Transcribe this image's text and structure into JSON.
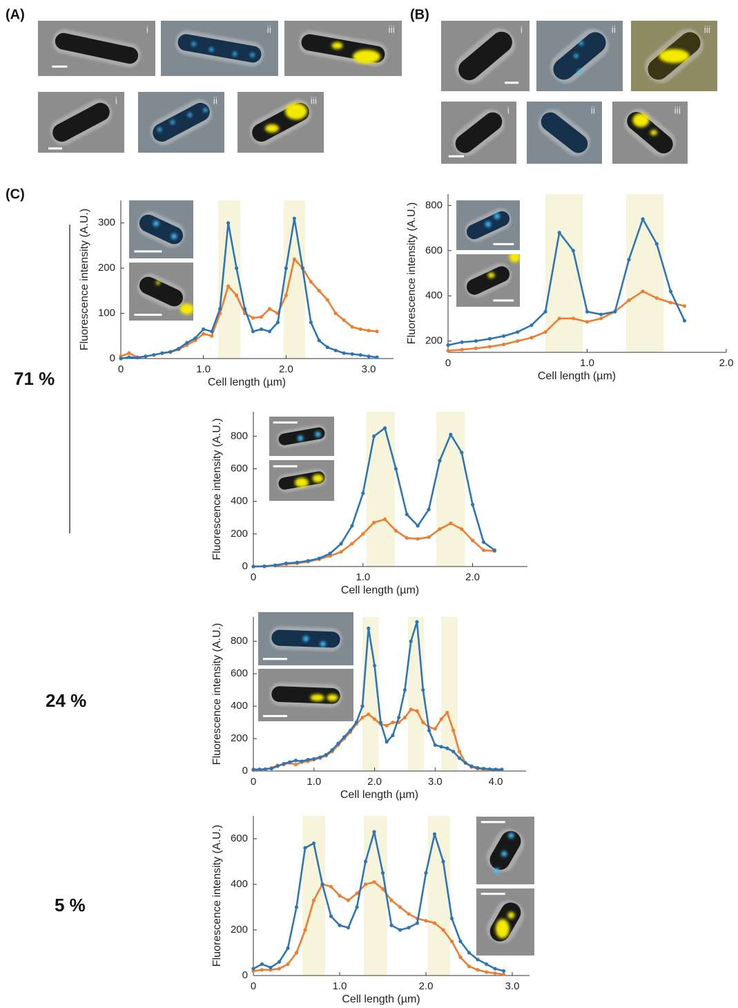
{
  "panel_labels": [
    "(A)",
    "(B)",
    "(C)"
  ],
  "image_labels": [
    "i",
    "ii",
    "iii"
  ],
  "percentages": [
    "71 %",
    "24 %",
    "5 %"
  ],
  "chart_data": [
    {
      "type": "line",
      "x_label": "Cell length (µm)",
      "y_label": "Fluorescence intensity (A.U.)",
      "x": [
        0,
        0.1,
        0.2,
        0.3,
        0.4,
        0.5,
        0.6,
        0.7,
        0.8,
        0.9,
        1.0,
        1.1,
        1.2,
        1.3,
        1.4,
        1.5,
        1.6,
        1.7,
        1.8,
        1.9,
        2.0,
        2.1,
        2.2,
        2.3,
        2.4,
        2.5,
        2.6,
        2.7,
        2.8,
        2.9,
        3.0,
        3.1
      ],
      "series": [
        {
          "color": "#ed7d31",
          "values": [
            5,
            12,
            3,
            5,
            8,
            12,
            14,
            20,
            30,
            40,
            55,
            50,
            100,
            160,
            140,
            100,
            90,
            92,
            110,
            100,
            140,
            220,
            200,
            170,
            150,
            130,
            100,
            85,
            70,
            65,
            62,
            60
          ]
        },
        {
          "color": "#2e75b6",
          "values": [
            0,
            3,
            2,
            5,
            8,
            12,
            15,
            22,
            35,
            45,
            65,
            60,
            110,
            300,
            200,
            110,
            60,
            65,
            60,
            80,
            200,
            310,
            200,
            80,
            40,
            25,
            18,
            12,
            10,
            8,
            5,
            3
          ]
        }
      ],
      "highlights": [
        [
          1.18,
          1.45
        ],
        [
          1.97,
          2.23
        ]
      ],
      "highlight_color": "#f7f4dc",
      "xlim": [
        0,
        3.3
      ],
      "ylim": [
        0,
        350
      ],
      "xticks": [
        0,
        {
          "value": 1,
          "label": "1.0"
        },
        {
          "value": 2,
          "label": "2.0"
        },
        {
          "value": 3,
          "label": "3.0"
        }
      ],
      "yticks": [
        0,
        100,
        200,
        300
      ]
    },
    {
      "type": "line",
      "x_label": "Cell length (µm)",
      "y_label": "Fluorescence intensity (A.U.)",
      "x": [
        0,
        0.1,
        0.2,
        0.3,
        0.4,
        0.5,
        0.6,
        0.7,
        0.8,
        0.9,
        1.0,
        1.1,
        1.2,
        1.3,
        1.4,
        1.5,
        1.6,
        1.7
      ],
      "series": [
        {
          "color": "#ed7d31",
          "values": [
            157,
            162,
            168,
            175,
            185,
            200,
            215,
            240,
            300,
            300,
            285,
            300,
            330,
            380,
            420,
            390,
            370,
            355
          ]
        },
        {
          "color": "#2e75b6",
          "values": [
            182,
            195,
            200,
            210,
            222,
            240,
            270,
            330,
            680,
            600,
            330,
            318,
            330,
            560,
            740,
            630,
            420,
            290
          ]
        }
      ],
      "highlights": [
        [
          0.7,
          0.97
        ],
        [
          1.28,
          1.55
        ]
      ],
      "highlight_color": "#f7f4dc",
      "xlim": [
        0,
        2.0
      ],
      "ylim": [
        150,
        850
      ],
      "xticks": [
        0,
        {
          "value": 1,
          "label": "1.0"
        },
        {
          "value": 2,
          "label": "2.0"
        }
      ],
      "yticks": [
        200,
        400,
        600,
        800
      ]
    },
    {
      "type": "line",
      "x_label": "Cell length (µm)",
      "y_label": "Fluorescence intensity (A.U.)",
      "x": [
        0,
        0.1,
        0.2,
        0.3,
        0.4,
        0.5,
        0.6,
        0.7,
        0.8,
        0.9,
        1.0,
        1.1,
        1.2,
        1.3,
        1.4,
        1.5,
        1.6,
        1.7,
        1.8,
        1.9,
        2.0,
        2.1,
        2.2
      ],
      "series": [
        {
          "color": "#ed7d31",
          "values": [
            0,
            0,
            5,
            15,
            20,
            30,
            45,
            65,
            90,
            140,
            200,
            270,
            290,
            220,
            175,
            170,
            180,
            230,
            265,
            230,
            160,
            100,
            95
          ]
        },
        {
          "color": "#2e75b6",
          "values": [
            0,
            2,
            8,
            20,
            25,
            35,
            50,
            80,
            140,
            250,
            450,
            800,
            850,
            600,
            320,
            250,
            350,
            650,
            810,
            700,
            380,
            150,
            100
          ]
        }
      ],
      "highlights": [
        [
          1.03,
          1.29
        ],
        [
          1.67,
          1.93
        ]
      ],
      "highlight_color": "#f7f4dc",
      "xlim": [
        0,
        2.5
      ],
      "ylim": [
        0,
        950
      ],
      "xticks": [
        0,
        {
          "value": 1,
          "label": "1.0"
        },
        {
          "value": 2,
          "label": "2.0"
        }
      ],
      "yticks": [
        0,
        200,
        400,
        600,
        800
      ]
    },
    {
      "type": "line",
      "x_label": "Cell length (µm)",
      "y_label": "Fluorescence intensity (A.U.)",
      "x": [
        0,
        0.1,
        0.2,
        0.3,
        0.4,
        0.5,
        0.6,
        0.7,
        0.8,
        0.9,
        1.0,
        1.1,
        1.2,
        1.3,
        1.4,
        1.5,
        1.6,
        1.7,
        1.8,
        1.9,
        2.0,
        2.1,
        2.2,
        2.3,
        2.4,
        2.5,
        2.6,
        2.7,
        2.8,
        2.9,
        3.0,
        3.1,
        3.2,
        3.3,
        3.4,
        3.5,
        3.6,
        3.7,
        3.8,
        3.9,
        4.0,
        4.1
      ],
      "series": [
        {
          "color": "#ed7d31",
          "values": [
            5,
            8,
            10,
            20,
            35,
            40,
            50,
            40,
            55,
            60,
            70,
            80,
            95,
            120,
            160,
            200,
            240,
            290,
            330,
            350,
            320,
            290,
            280,
            300,
            300,
            330,
            380,
            370,
            300,
            270,
            260,
            320,
            360,
            250,
            120,
            50,
            25,
            15,
            10,
            8,
            8,
            8
          ]
        },
        {
          "color": "#2e75b6",
          "values": [
            10,
            10,
            12,
            15,
            30,
            45,
            55,
            65,
            60,
            70,
            75,
            85,
            100,
            130,
            170,
            210,
            250,
            300,
            400,
            880,
            650,
            300,
            180,
            220,
            330,
            500,
            800,
            920,
            500,
            250,
            160,
            150,
            140,
            120,
            80,
            50,
            30,
            20,
            15,
            12,
            10,
            10
          ]
        }
      ],
      "highlights": [
        [
          1.8,
          2.07
        ],
        [
          2.55,
          2.82
        ],
        [
          3.1,
          3.37
        ]
      ],
      "highlight_color": "#f7f4dc",
      "xlim": [
        0,
        4.5
      ],
      "ylim": [
        0,
        950
      ],
      "xticks": [
        0,
        {
          "value": 1,
          "label": "1.0"
        },
        {
          "value": 2,
          "label": "2.0"
        },
        {
          "value": 3,
          "label": "3.0"
        },
        {
          "value": 4,
          "label": "4.0"
        }
      ],
      "yticks": [
        0,
        200,
        400,
        600,
        800
      ]
    },
    {
      "type": "line",
      "x_label": "Cell length (µm)",
      "y_label": "Fluorescence intensity (A.U.)",
      "x": [
        0,
        0.1,
        0.2,
        0.3,
        0.4,
        0.5,
        0.6,
        0.7,
        0.8,
        0.9,
        1.0,
        1.1,
        1.2,
        1.3,
        1.4,
        1.5,
        1.6,
        1.7,
        1.8,
        1.9,
        2.0,
        2.1,
        2.2,
        2.3,
        2.4,
        2.5,
        2.6,
        2.7,
        2.8,
        2.9
      ],
      "series": [
        {
          "color": "#ed7d31",
          "values": [
            20,
            25,
            25,
            30,
            50,
            100,
            200,
            330,
            400,
            390,
            350,
            330,
            360,
            400,
            410,
            380,
            330,
            300,
            270,
            250,
            240,
            230,
            200,
            150,
            80,
            40,
            25,
            15,
            10,
            5
          ]
        },
        {
          "color": "#2e75b6",
          "values": [
            30,
            50,
            35,
            60,
            120,
            300,
            560,
            580,
            400,
            260,
            220,
            210,
            300,
            500,
            630,
            450,
            220,
            200,
            210,
            230,
            450,
            620,
            500,
            250,
            150,
            100,
            70,
            50,
            30,
            20
          ]
        }
      ],
      "highlights": [
        [
          0.57,
          0.83
        ],
        [
          1.28,
          1.55
        ],
        [
          2.02,
          2.28
        ]
      ],
      "highlight_color": "#f7f4dc",
      "xlim": [
        0,
        3.2
      ],
      "ylim": [
        0,
        700
      ],
      "xticks": [
        0,
        {
          "value": 1,
          "label": "1.0"
        },
        {
          "value": 2,
          "label": "2.0"
        },
        {
          "value": 3,
          "label": "3.0"
        }
      ],
      "yticks": [
        0,
        200,
        400,
        600
      ]
    }
  ]
}
